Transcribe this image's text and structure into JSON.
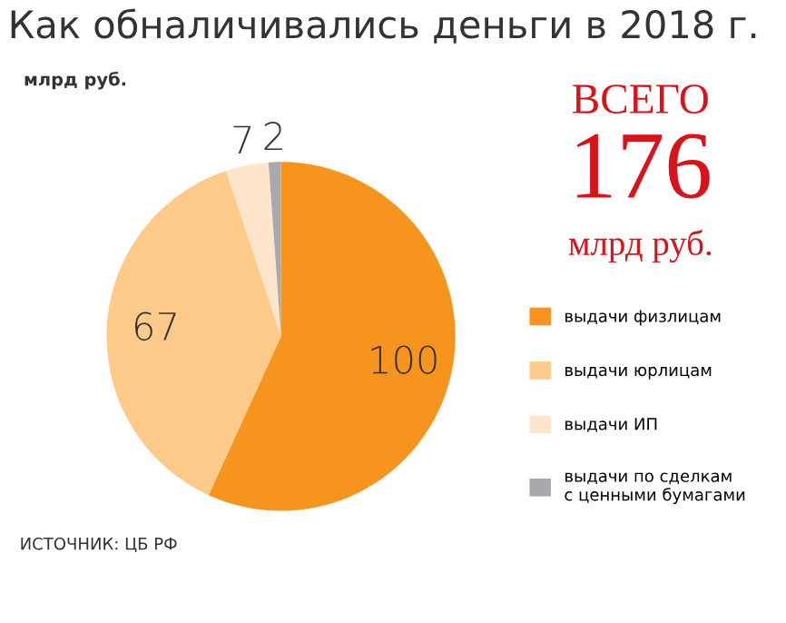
{
  "chart_data": {
    "type": "pie",
    "title": "Как обналичивались деньги в 2018 г.",
    "subtitle": "млрд руб.",
    "categories": [
      "выдачи физлицам",
      "выдачи юрлицам",
      "выдачи ИП",
      "выдачи по сделкам\nс ценными бумагами"
    ],
    "values": [
      100,
      67,
      7,
      2
    ],
    "colors": [
      "#f7941d",
      "#fdca8a",
      "#fde5cb",
      "#a7a9ac"
    ],
    "data_labels": true,
    "legend": "right",
    "annotations": [
      "ВСЕГО",
      "176",
      "млрд руб.",
      "ИСТОЧНИК: ЦБ РФ"
    ]
  }
}
